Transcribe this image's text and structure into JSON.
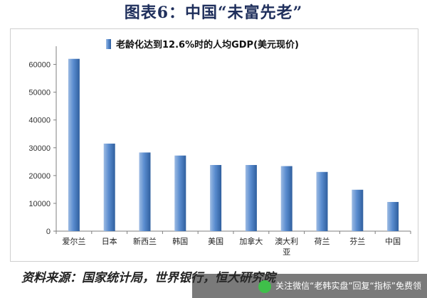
{
  "figure_title": "图表6：中国“未富先老”",
  "source_note": "资料来源：国家统计局，世界银行，恒大研究院",
  "watermark": {
    "text": "关注微信“老韩实盘”回复“指标”免费领",
    "icon": "wechat-icon"
  },
  "chart_data": {
    "type": "bar",
    "categories": [
      "爱尔兰",
      "日本",
      "新西兰",
      "韩国",
      "美国",
      "加拿大",
      "澳大利亚",
      "荷兰",
      "芬兰",
      "中国"
    ],
    "series": [
      {
        "name": "老龄化达到12.6%时的人均GDP(美元现价)",
        "values": [
          62000,
          31500,
          28300,
          27200,
          23800,
          23800,
          23400,
          21300,
          14900,
          10500
        ],
        "color": "#5a8ccf"
      }
    ],
    "ylim": [
      0,
      65000
    ],
    "yticks": [
      0,
      10000,
      20000,
      30000,
      40000,
      50000,
      60000
    ],
    "grid": false,
    "legend": "top"
  }
}
